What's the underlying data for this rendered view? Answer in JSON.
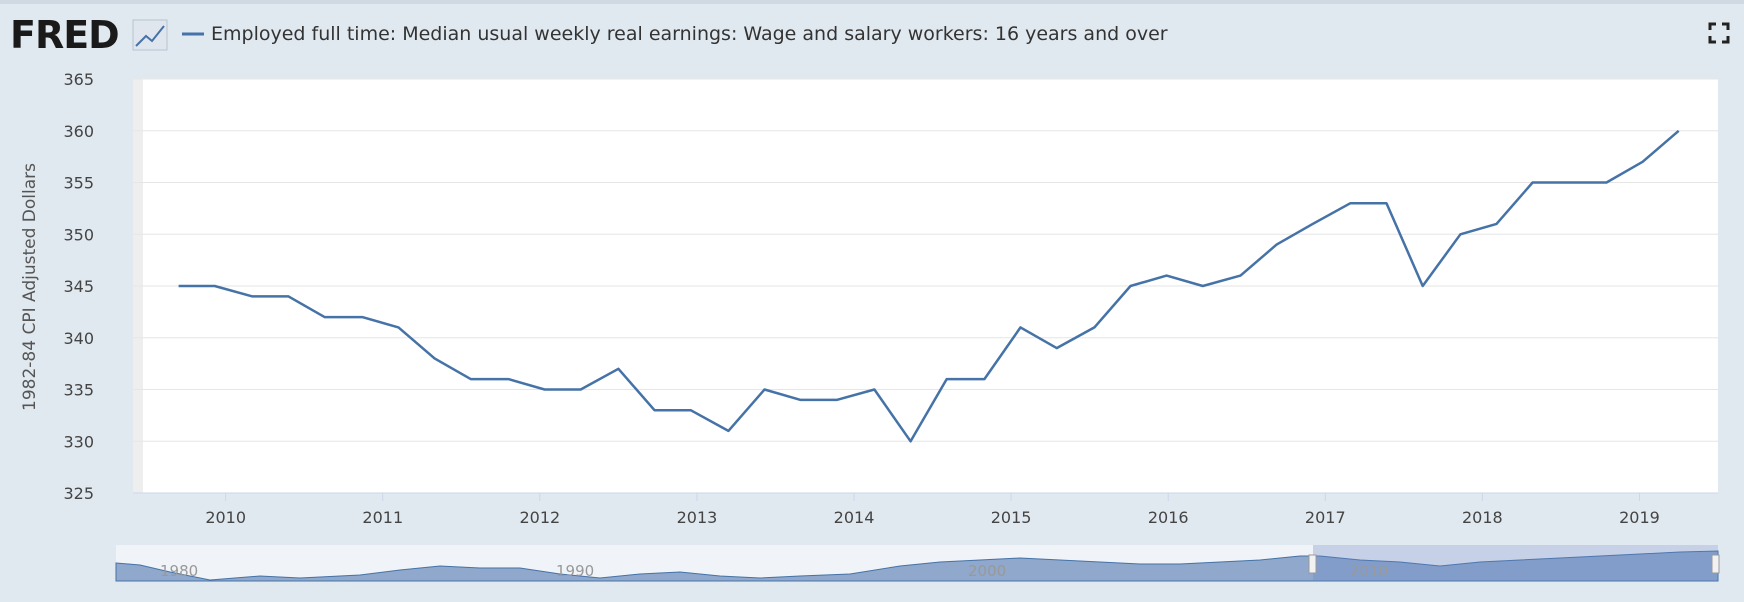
{
  "logo": "FRED",
  "chart_data": {
    "type": "line",
    "y_label": "1982-84 CPI Adjusted Dollars",
    "series": [
      {
        "name": "Employed full time: Median usual weekly real earnings: Wage and salary workers: 16 years and over",
        "color": "#4572a7",
        "x": [
          2009.7,
          2009.93,
          2010.17,
          2010.4,
          2010.63,
          2010.87,
          2011.1,
          2011.33,
          2011.56,
          2011.8,
          2012.03,
          2012.26,
          2012.5,
          2012.73,
          2012.96,
          2013.2,
          2013.43,
          2013.66,
          2013.89,
          2014.13,
          2014.36,
          2014.59,
          2014.83,
          2015.06,
          2015.29,
          2015.53,
          2015.76,
          2015.99,
          2016.22,
          2016.46,
          2016.69,
          2016.92,
          2017.16,
          2017.39,
          2017.62,
          2017.86,
          2018.09,
          2018.32,
          2018.55,
          2018.79,
          2019.02,
          2019.25
        ],
        "values": [
          345,
          345,
          344,
          344,
          342,
          342,
          341,
          338,
          336,
          336,
          335,
          335,
          337,
          333,
          333,
          331,
          335,
          334,
          334,
          335,
          330,
          336,
          336,
          341,
          339,
          341,
          345,
          346,
          345,
          346,
          349,
          351,
          353,
          353,
          345,
          350,
          351,
          355,
          355,
          355,
          357,
          360
        ]
      }
    ],
    "xlim": [
      2009.41,
      2019.5
    ],
    "xticks": [
      2010,
      2011,
      2012,
      2013,
      2014,
      2015,
      2016,
      2017,
      2018,
      2019
    ],
    "ylim": [
      325,
      365
    ],
    "yticks": [
      325,
      330,
      335,
      340,
      345,
      350,
      355,
      360,
      365
    ],
    "grid": true
  },
  "navigator": {
    "labels": [
      "1980",
      "1990",
      "2000",
      "2010"
    ]
  }
}
